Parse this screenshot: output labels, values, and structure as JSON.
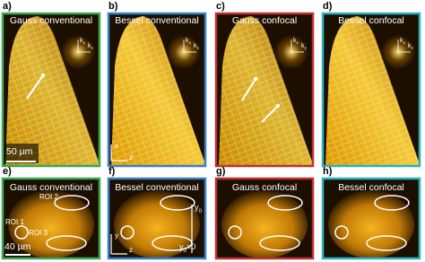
{
  "top_panels": [
    {
      "label": "a)",
      "title": "Gauss conventional"
    },
    {
      "label": "b)",
      "title": "Bessel conventional"
    },
    {
      "label": "c)",
      "title": "Gauss confocal"
    },
    {
      "label": "d)",
      "title": "Bessel confocal"
    }
  ],
  "bottom_panels": [
    {
      "label": "e)",
      "title": "Gauss conventional"
    },
    {
      "label": "f)",
      "title": "Bessel conventional"
    },
    {
      "label": "g)",
      "title": "Gauss confocal"
    },
    {
      "label": "h)",
      "title": "Bessel confocal"
    }
  ],
  "fft_axes": {
    "vertical": [
      "k",
      "x"
    ],
    "horizontal": [
      "k",
      "z"
    ]
  },
  "scale_bars": {
    "top": "50 µm",
    "bottom": "40 µm"
  },
  "rois": [
    "ROI 1",
    "ROI 2",
    "ROI 3"
  ],
  "axes_b": {
    "vertical": "x",
    "horizontal": "z"
  },
  "axes_f": {
    "vertical": "y",
    "horizontal": "z",
    "y0": [
      "y",
      "0"
    ],
    "y0_zero": [
      "y",
      "0",
      "=0"
    ]
  }
}
